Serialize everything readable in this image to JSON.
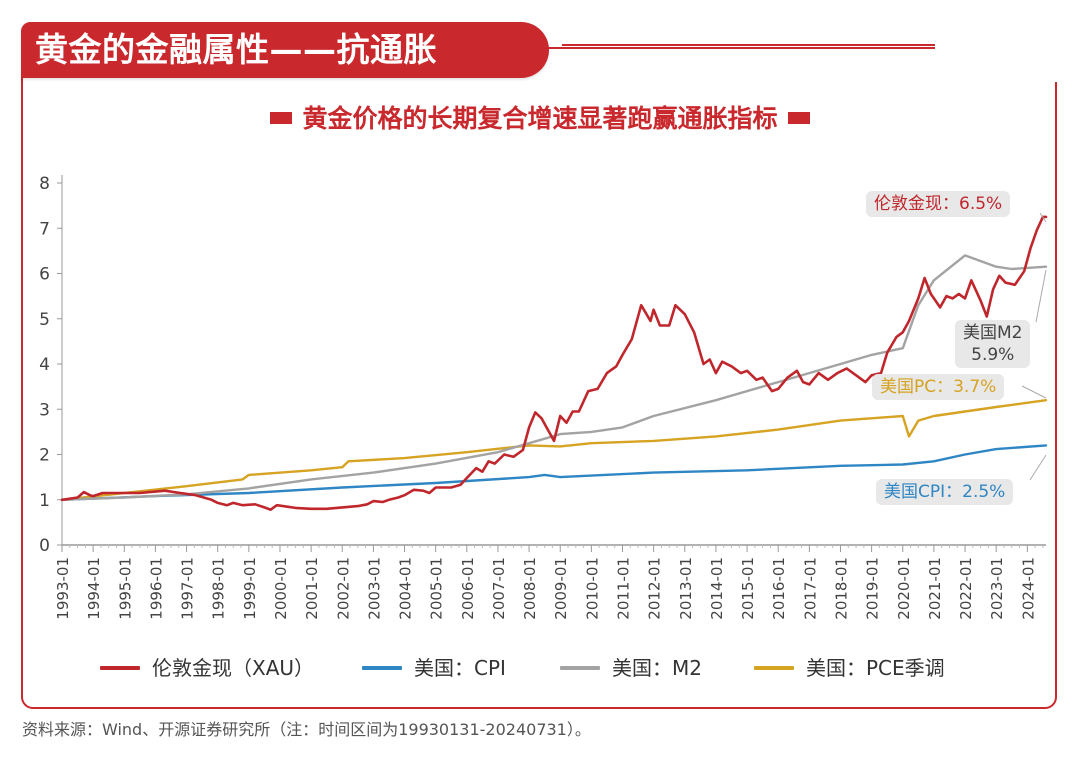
{
  "header": {
    "title": "黄金的金融属性——抗通胀"
  },
  "subtitle": "黄金价格的长期复合增速显著跑赢通胀指标",
  "footer": "资料来源：Wind、开源证券研究所（注：时间区间为19930131-20240731）。",
  "chart_data": {
    "type": "line",
    "ylim": [
      0,
      8
    ],
    "yticks": [
      "0",
      "1",
      "2",
      "3",
      "4",
      "5",
      "6",
      "7",
      "8"
    ],
    "xlim": [
      1993.0,
      2024.6
    ],
    "xticks": [
      "1993-01",
      "1994-01",
      "1995-01",
      "1996-01",
      "1997-01",
      "1998-01",
      "1999-01",
      "2000-01",
      "2001-01",
      "2002-01",
      "2003-01",
      "2004-01",
      "2005-01",
      "2006-01",
      "2007-01",
      "2008-01",
      "2009-01",
      "2010-01",
      "2011-01",
      "2012-01",
      "2013-01",
      "2014-01",
      "2015-01",
      "2016-01",
      "2017-01",
      "2018-01",
      "2019-01",
      "2020-01",
      "2021-01",
      "2022-01",
      "2023-01",
      "2024-01"
    ],
    "series": [
      {
        "name": "伦敦金现（XAU）",
        "color": "#c0272d",
        "callout": "伦敦金现：6.5%",
        "points": [
          [
            1993.0,
            1.0
          ],
          [
            1993.5,
            1.05
          ],
          [
            1993.7,
            1.17
          ],
          [
            1993.9,
            1.1
          ],
          [
            1994.0,
            1.08
          ],
          [
            1994.3,
            1.15
          ],
          [
            1995.0,
            1.15
          ],
          [
            1995.5,
            1.15
          ],
          [
            1996.0,
            1.18
          ],
          [
            1996.3,
            1.2
          ],
          [
            1996.8,
            1.15
          ],
          [
            1997.3,
            1.1
          ],
          [
            1997.8,
            1.0
          ],
          [
            1998.0,
            0.93
          ],
          [
            1998.3,
            0.88
          ],
          [
            1998.5,
            0.93
          ],
          [
            1998.8,
            0.88
          ],
          [
            1999.2,
            0.9
          ],
          [
            1999.5,
            0.83
          ],
          [
            1999.7,
            0.78
          ],
          [
            1999.9,
            0.88
          ],
          [
            2000.5,
            0.82
          ],
          [
            2001.0,
            0.8
          ],
          [
            2001.5,
            0.8
          ],
          [
            2002.0,
            0.83
          ],
          [
            2002.5,
            0.86
          ],
          [
            2002.8,
            0.9
          ],
          [
            2003.0,
            0.97
          ],
          [
            2003.3,
            0.95
          ],
          [
            2003.5,
            1.0
          ],
          [
            2003.8,
            1.05
          ],
          [
            2004.0,
            1.1
          ],
          [
            2004.3,
            1.22
          ],
          [
            2004.6,
            1.2
          ],
          [
            2004.8,
            1.15
          ],
          [
            2005.0,
            1.27
          ],
          [
            2005.5,
            1.27
          ],
          [
            2005.8,
            1.33
          ],
          [
            2006.0,
            1.48
          ],
          [
            2006.3,
            1.7
          ],
          [
            2006.5,
            1.62
          ],
          [
            2006.7,
            1.85
          ],
          [
            2006.9,
            1.8
          ],
          [
            2007.2,
            2.0
          ],
          [
            2007.5,
            1.95
          ],
          [
            2007.8,
            2.1
          ],
          [
            2008.0,
            2.6
          ],
          [
            2008.2,
            2.93
          ],
          [
            2008.4,
            2.8
          ],
          [
            2008.6,
            2.55
          ],
          [
            2008.8,
            2.3
          ],
          [
            2009.0,
            2.85
          ],
          [
            2009.2,
            2.7
          ],
          [
            2009.4,
            2.95
          ],
          [
            2009.6,
            2.95
          ],
          [
            2009.9,
            3.4
          ],
          [
            2010.2,
            3.45
          ],
          [
            2010.5,
            3.8
          ],
          [
            2010.8,
            3.95
          ],
          [
            2011.0,
            4.2
          ],
          [
            2011.3,
            4.55
          ],
          [
            2011.6,
            5.3
          ],
          [
            2011.9,
            4.95
          ],
          [
            2012.0,
            5.2
          ],
          [
            2012.2,
            4.85
          ],
          [
            2012.5,
            4.85
          ],
          [
            2012.7,
            5.3
          ],
          [
            2013.0,
            5.1
          ],
          [
            2013.3,
            4.7
          ],
          [
            2013.6,
            4.0
          ],
          [
            2013.8,
            4.1
          ],
          [
            2014.0,
            3.8
          ],
          [
            2014.2,
            4.05
          ],
          [
            2014.5,
            3.95
          ],
          [
            2014.8,
            3.8
          ],
          [
            2015.0,
            3.85
          ],
          [
            2015.3,
            3.65
          ],
          [
            2015.5,
            3.7
          ],
          [
            2015.8,
            3.4
          ],
          [
            2016.0,
            3.45
          ],
          [
            2016.3,
            3.7
          ],
          [
            2016.6,
            3.85
          ],
          [
            2016.8,
            3.6
          ],
          [
            2017.0,
            3.55
          ],
          [
            2017.3,
            3.8
          ],
          [
            2017.6,
            3.65
          ],
          [
            2017.9,
            3.8
          ],
          [
            2018.2,
            3.9
          ],
          [
            2018.5,
            3.75
          ],
          [
            2018.8,
            3.6
          ],
          [
            2019.0,
            3.75
          ],
          [
            2019.3,
            3.8
          ],
          [
            2019.5,
            4.25
          ],
          [
            2019.8,
            4.6
          ],
          [
            2020.0,
            4.7
          ],
          [
            2020.2,
            4.95
          ],
          [
            2020.5,
            5.45
          ],
          [
            2020.7,
            5.9
          ],
          [
            2020.9,
            5.55
          ],
          [
            2021.0,
            5.45
          ],
          [
            2021.2,
            5.25
          ],
          [
            2021.4,
            5.5
          ],
          [
            2021.6,
            5.45
          ],
          [
            2021.8,
            5.55
          ],
          [
            2022.0,
            5.45
          ],
          [
            2022.2,
            5.85
          ],
          [
            2022.5,
            5.4
          ],
          [
            2022.7,
            5.05
          ],
          [
            2022.9,
            5.65
          ],
          [
            2023.1,
            5.95
          ],
          [
            2023.3,
            5.8
          ],
          [
            2023.6,
            5.75
          ],
          [
            2023.9,
            6.05
          ],
          [
            2024.1,
            6.55
          ],
          [
            2024.3,
            6.95
          ],
          [
            2024.5,
            7.25
          ],
          [
            2024.6,
            7.25
          ]
        ]
      },
      {
        "name": "美国：CPI",
        "color": "#2f86c4",
        "callout": "美国CPI：2.5%",
        "points": [
          [
            1993.0,
            1.0
          ],
          [
            1996.0,
            1.08
          ],
          [
            1999.0,
            1.15
          ],
          [
            2002.0,
            1.27
          ],
          [
            2005.0,
            1.37
          ],
          [
            2008.0,
            1.5
          ],
          [
            2008.5,
            1.55
          ],
          [
            2009.0,
            1.5
          ],
          [
            2012.0,
            1.6
          ],
          [
            2015.0,
            1.65
          ],
          [
            2018.0,
            1.75
          ],
          [
            2020.0,
            1.78
          ],
          [
            2021.0,
            1.85
          ],
          [
            2022.0,
            2.0
          ],
          [
            2023.0,
            2.12
          ],
          [
            2024.6,
            2.2
          ]
        ]
      },
      {
        "name": "美国：M2",
        "color": "#a3a3a3",
        "callout": "美国M2\n5.9%",
        "points": [
          [
            1993.0,
            1.0
          ],
          [
            1995.0,
            1.05
          ],
          [
            1997.0,
            1.12
          ],
          [
            1999.0,
            1.25
          ],
          [
            2001.0,
            1.45
          ],
          [
            2003.0,
            1.6
          ],
          [
            2005.0,
            1.8
          ],
          [
            2007.0,
            2.05
          ],
          [
            2008.5,
            2.35
          ],
          [
            2009.0,
            2.45
          ],
          [
            2010.0,
            2.5
          ],
          [
            2011.0,
            2.6
          ],
          [
            2012.0,
            2.85
          ],
          [
            2014.0,
            3.2
          ],
          [
            2016.0,
            3.6
          ],
          [
            2018.0,
            4.0
          ],
          [
            2019.0,
            4.2
          ],
          [
            2020.0,
            4.35
          ],
          [
            2020.5,
            5.3
          ],
          [
            2021.0,
            5.85
          ],
          [
            2022.0,
            6.4
          ],
          [
            2023.0,
            6.15
          ],
          [
            2023.5,
            6.1
          ],
          [
            2024.6,
            6.15
          ]
        ]
      },
      {
        "name": "美国：PCE季调",
        "color": "#d6a322",
        "callout": "美国PC：3.7%",
        "points": [
          [
            1993.0,
            1.0
          ],
          [
            1995.0,
            1.15
          ],
          [
            1997.0,
            1.3
          ],
          [
            1998.8,
            1.45
          ],
          [
            1999.0,
            1.55
          ],
          [
            2001.0,
            1.65
          ],
          [
            2002.0,
            1.72
          ],
          [
            2002.2,
            1.85
          ],
          [
            2004.0,
            1.92
          ],
          [
            2006.0,
            2.05
          ],
          [
            2008.0,
            2.2
          ],
          [
            2009.0,
            2.18
          ],
          [
            2010.0,
            2.25
          ],
          [
            2012.0,
            2.3
          ],
          [
            2014.0,
            2.4
          ],
          [
            2016.0,
            2.55
          ],
          [
            2018.0,
            2.75
          ],
          [
            2020.0,
            2.85
          ],
          [
            2020.2,
            2.4
          ],
          [
            2020.5,
            2.75
          ],
          [
            2021.0,
            2.85
          ],
          [
            2022.0,
            2.95
          ],
          [
            2023.0,
            3.05
          ],
          [
            2024.6,
            3.2
          ]
        ]
      }
    ]
  }
}
